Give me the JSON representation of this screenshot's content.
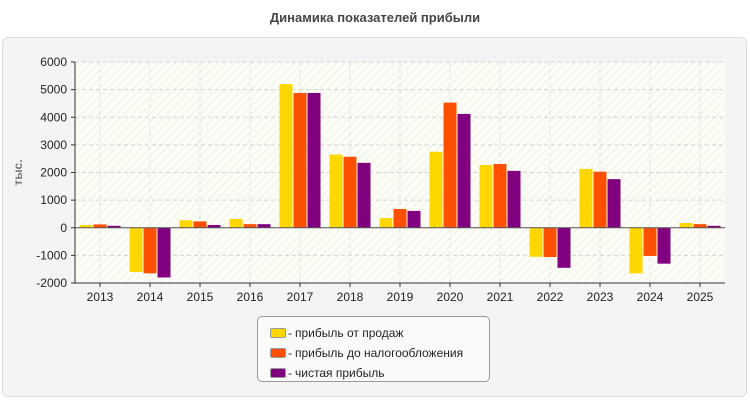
{
  "chart_data": {
    "type": "bar",
    "title": "Динамика показателей прибыли",
    "ylabel": "тыс.",
    "xlabel": "",
    "ylim": [
      -2000,
      6000
    ],
    "yticks": [
      -2000,
      -1000,
      0,
      1000,
      2000,
      3000,
      4000,
      5000,
      6000
    ],
    "grid": true,
    "legend_position": "bottom",
    "categories": [
      "2013",
      "2014",
      "2015",
      "2016",
      "2017",
      "2018",
      "2019",
      "2020",
      "2021",
      "2022",
      "2023",
      "2024",
      "2025"
    ],
    "series": [
      {
        "name": "прибыль от продаж",
        "color": "#ffd700",
        "values": [
          100,
          -1600,
          270,
          320,
          5200,
          2650,
          350,
          2750,
          2270,
          -1050,
          2130,
          -1650,
          170
        ]
      },
      {
        "name": "прибыль до налогообложения",
        "color": "#ff4f00",
        "values": [
          120,
          -1650,
          230,
          130,
          4880,
          2570,
          680,
          4530,
          2310,
          -1060,
          2030,
          -1020,
          130
        ]
      },
      {
        "name": "чистая прибыль",
        "color": "#800080",
        "values": [
          70,
          -1800,
          100,
          130,
          4880,
          2350,
          610,
          4120,
          2060,
          -1450,
          1760,
          -1300,
          70
        ]
      }
    ]
  },
  "legend": {
    "dash": "-"
  }
}
